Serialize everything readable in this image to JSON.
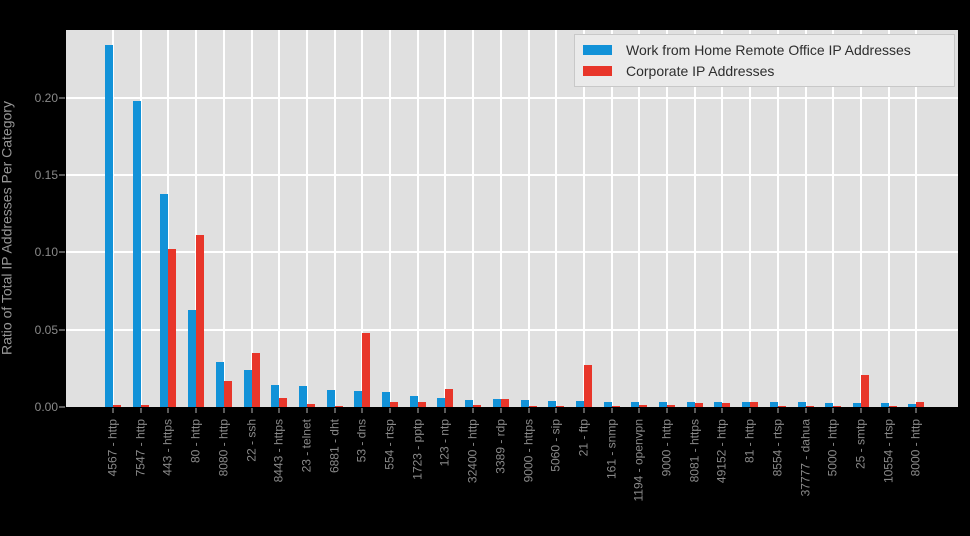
{
  "figure": {
    "background": "#000000",
    "plot_background": "#e0e0e0",
    "grid_color": "#ffffff",
    "tick_mark_color": "#5a5a5a",
    "axis_label_color": "#8a8a8a",
    "legend_background": "#eaeaea"
  },
  "chart_data": {
    "type": "bar",
    "title": "",
    "xlabel": "",
    "ylabel": "Ratio of Total IP Addresses Per Category",
    "grid": true,
    "legend_position": "top-right",
    "ylim": [
      0,
      0.244
    ],
    "yticks": [
      0,
      0.05,
      0.1,
      0.15,
      0.2
    ],
    "ytick_labels": [
      "0.00",
      "0.05",
      "0.10",
      "0.15",
      "0.20"
    ],
    "categories": [
      "4567 - http",
      "7547 - http",
      "443 - https",
      "80 - http",
      "8080 - http",
      "22 - ssh",
      "8443 - https",
      "23 - telnet",
      "6881 - dht",
      "53 - dns",
      "554 - rtsp",
      "1723 - pptp",
      "123 - ntp",
      "32400 - http",
      "3389 - rdp",
      "9000 - https",
      "5060 - sip",
      "21 - ftp",
      "161 - snmp",
      "1194 - openvpn",
      "9000 - http",
      "8081 - https",
      "49152 - http",
      "81 - http",
      "8554 - rtsp",
      "37777 - dahua",
      "5000 - http",
      "25 - smtp",
      "10554 - rtsp",
      "8000 - http"
    ],
    "series": [
      {
        "name": "Work from Home Remote Office IP Addresses",
        "color": "#1292d8",
        "values": [
          0.234,
          0.198,
          0.138,
          0.063,
          0.029,
          0.024,
          0.0145,
          0.0135,
          0.011,
          0.0105,
          0.0095,
          0.007,
          0.006,
          0.0046,
          0.005,
          0.0046,
          0.004,
          0.004,
          0.0035,
          0.003,
          0.0033,
          0.003,
          0.003,
          0.003,
          0.003,
          0.003,
          0.0025,
          0.0026,
          0.0024,
          0.002
        ]
      },
      {
        "name": "Corporate IP Addresses",
        "color": "#e8362a",
        "values": [
          0.001,
          0.0015,
          0.102,
          0.111,
          0.017,
          0.035,
          0.006,
          0.002,
          0.0005,
          0.048,
          0.0035,
          0.003,
          0.0115,
          0.0013,
          0.005,
          0.0008,
          0.0008,
          0.027,
          0.0008,
          0.001,
          0.0011,
          0.0028,
          0.0025,
          0.003,
          0.0005,
          0.0005,
          0.0008,
          0.0205,
          0.0004,
          0.003
        ]
      }
    ]
  }
}
